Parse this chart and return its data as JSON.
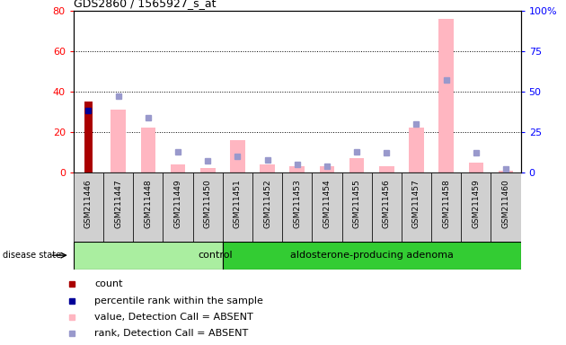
{
  "title": "GDS2860 / 1565927_s_at",
  "samples": [
    "GSM211446",
    "GSM211447",
    "GSM211448",
    "GSM211449",
    "GSM211450",
    "GSM211451",
    "GSM211452",
    "GSM211453",
    "GSM211454",
    "GSM211455",
    "GSM211456",
    "GSM211457",
    "GSM211458",
    "GSM211459",
    "GSM211460"
  ],
  "count_values": [
    35,
    0,
    0,
    0,
    0,
    0,
    0,
    0,
    0,
    0,
    0,
    0,
    0,
    0,
    0
  ],
  "percentile_values": [
    38,
    0,
    0,
    0,
    0,
    0,
    0,
    0,
    0,
    0,
    0,
    0,
    0,
    0,
    0
  ],
  "pink_bar_values": [
    0,
    31,
    22,
    4,
    2,
    16,
    4,
    3,
    3,
    7,
    3,
    22,
    76,
    5,
    1
  ],
  "blue_square_values": [
    0,
    47,
    34,
    13,
    7,
    10,
    8,
    5,
    4,
    13,
    12,
    30,
    57,
    12,
    2
  ],
  "ylim_left": [
    0,
    80
  ],
  "ylim_right": [
    0,
    100
  ],
  "yticks_left": [
    0,
    20,
    40,
    60,
    80
  ],
  "yticks_right": [
    0,
    25,
    50,
    75,
    100
  ],
  "ytick_labels_right": [
    "0",
    "25",
    "50",
    "75",
    "100%"
  ],
  "control_count": 5,
  "adenoma_count": 10,
  "control_label": "control",
  "adenoma_label": "aldosterone-producing adenoma",
  "disease_state_label": "disease state",
  "legend_items": [
    "count",
    "percentile rank within the sample",
    "value, Detection Call = ABSENT",
    "rank, Detection Call = ABSENT"
  ],
  "bar_color_dark_red": "#AA0000",
  "bar_color_pink": "#FFB6C1",
  "square_color_blue_dark": "#000099",
  "square_color_blue_light": "#9999CC",
  "control_bg": "#AAEEA0",
  "adenoma_bg": "#33CC33",
  "sample_bg": "#D0D0D0",
  "plot_bg": "#FFFFFF",
  "grid_color": "#000000"
}
